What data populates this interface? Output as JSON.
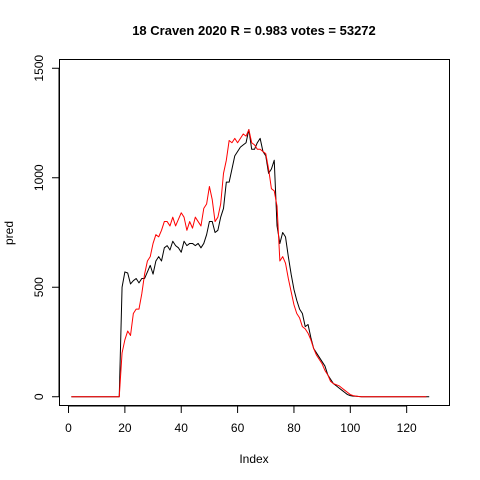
{
  "chart_data": {
    "type": "line",
    "title": "18 Craven 2020 R = 0.983 votes = 53272",
    "xlabel": "Index",
    "ylabel": "pred",
    "xlim": [
      -3.2,
      135.2
    ],
    "ylim": [
      -40,
      1540
    ],
    "x_ticks": [
      0,
      20,
      40,
      60,
      80,
      100,
      120
    ],
    "y_ticks": [
      0,
      500,
      1000,
      1500
    ],
    "grid": false,
    "legend": "none",
    "series": [
      {
        "color": "#000000",
        "values": [
          0,
          0,
          0,
          0,
          0,
          0,
          0,
          0,
          0,
          0,
          0,
          0,
          0,
          0,
          0,
          0,
          0,
          0,
          500,
          570,
          565,
          515,
          530,
          540,
          520,
          540,
          540,
          570,
          600,
          560,
          620,
          640,
          620,
          680,
          690,
          670,
          710,
          690,
          680,
          660,
          710,
          690,
          700,
          700,
          690,
          700,
          680,
          700,
          740,
          800,
          800,
          750,
          760,
          820,
          860,
          980,
          980,
          1040,
          1100,
          1120,
          1140,
          1150,
          1160,
          1220,
          1130,
          1130,
          1160,
          1180,
          1120,
          1100,
          1020,
          1040,
          1080,
          780,
          700,
          750,
          730,
          640,
          560,
          490,
          440,
          400,
          380,
          320,
          330,
          270,
          220,
          200,
          180,
          160,
          140,
          100,
          80,
          60,
          50,
          40,
          30,
          20,
          10,
          5,
          3,
          2,
          1,
          0,
          0,
          0,
          0,
          0,
          0,
          0,
          0,
          0,
          0,
          0,
          0,
          0,
          0,
          0,
          0,
          0,
          0,
          0,
          0,
          0,
          0,
          0,
          0,
          0
        ]
      },
      {
        "color": "#ff0000",
        "values": [
          0,
          0,
          0,
          0,
          0,
          0,
          0,
          0,
          0,
          0,
          0,
          0,
          0,
          0,
          0,
          0,
          0,
          0,
          200,
          260,
          300,
          280,
          380,
          400,
          400,
          470,
          560,
          620,
          640,
          700,
          740,
          730,
          760,
          800,
          800,
          780,
          820,
          780,
          810,
          840,
          820,
          760,
          800,
          770,
          820,
          800,
          780,
          860,
          880,
          960,
          900,
          800,
          820,
          880,
          1020,
          1080,
          1170,
          1160,
          1180,
          1160,
          1180,
          1200,
          1190,
          1220,
          1160,
          1150,
          1130,
          1130,
          1120,
          1110,
          1040,
          950,
          940,
          870,
          620,
          640,
          610,
          540,
          480,
          420,
          380,
          360,
          320,
          310,
          290,
          260,
          220,
          190,
          170,
          150,
          120,
          100,
          70,
          60,
          55,
          50,
          40,
          30,
          20,
          10,
          5,
          3,
          1,
          0,
          0,
          0,
          0,
          0,
          0,
          0,
          0,
          0,
          0,
          0,
          0,
          0,
          0,
          0,
          0,
          0,
          0,
          0,
          0,
          0,
          0,
          0,
          0
        ]
      }
    ]
  }
}
